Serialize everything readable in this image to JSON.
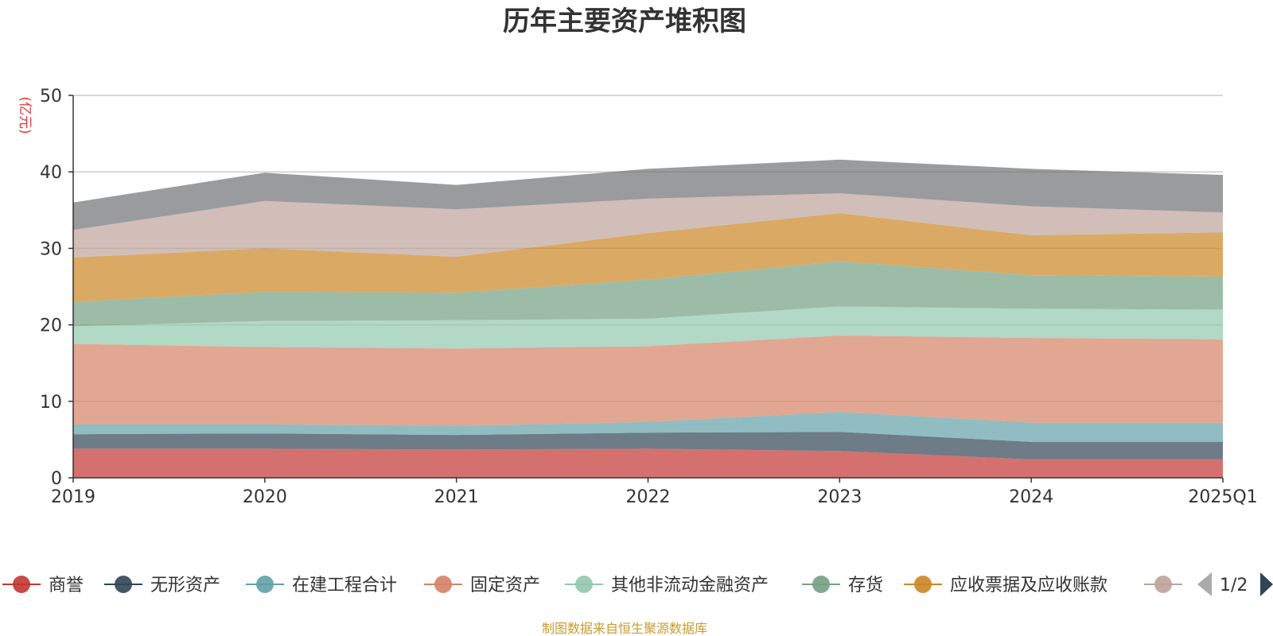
{
  "chart_data": {
    "type": "area",
    "stacked": true,
    "title": "历年主要资产堆积图",
    "ylabel": "(亿元)",
    "xlabel": "",
    "categories": [
      "2019",
      "2020",
      "2021",
      "2022",
      "2023",
      "2024",
      "2025Q1"
    ],
    "ylim": [
      0,
      50
    ],
    "yticks": [
      0,
      10,
      20,
      30,
      40,
      50
    ],
    "grid": true,
    "series": [
      {
        "name": "商誉",
        "color": "#c23531",
        "values": [
          3.8,
          3.8,
          3.7,
          3.8,
          3.5,
          2.4,
          2.4
        ]
      },
      {
        "name": "无形资产",
        "color": "#2f4554",
        "values": [
          1.9,
          2.0,
          1.9,
          2.1,
          2.5,
          2.3,
          2.3
        ]
      },
      {
        "name": "在建工程合计",
        "color": "#61a0a8",
        "values": [
          1.3,
          1.2,
          1.2,
          1.4,
          2.6,
          2.5,
          2.5
        ]
      },
      {
        "name": "固定资产",
        "color": "#d48265",
        "values": [
          10.5,
          10.1,
          10.1,
          9.9,
          10.0,
          11.1,
          10.9
        ]
      },
      {
        "name": "其他非流动金融资产",
        "color": "#91c7ae",
        "values": [
          2.3,
          3.4,
          3.7,
          3.6,
          3.8,
          3.8,
          3.9
        ]
      },
      {
        "name": "存货",
        "color": "#749f83",
        "values": [
          3.2,
          3.8,
          3.6,
          5.1,
          5.9,
          4.4,
          4.3
        ]
      },
      {
        "name": "应收票据及应收账款",
        "color": "#ca8622",
        "values": [
          5.8,
          5.7,
          4.7,
          6.1,
          6.3,
          5.2,
          5.8
        ]
      },
      {
        "name": "",
        "color": "#bda29a",
        "values": [
          3.6,
          6.2,
          6.2,
          4.5,
          2.6,
          3.8,
          2.6
        ]
      },
      {
        "name": "",
        "color": "#6e7074",
        "values": [
          3.6,
          3.7,
          3.2,
          3.9,
          4.4,
          4.9,
          4.9
        ]
      }
    ],
    "legend_position": "bottom",
    "legend_page": "1/2",
    "source": "制图数据来自恒生聚源数据库"
  }
}
